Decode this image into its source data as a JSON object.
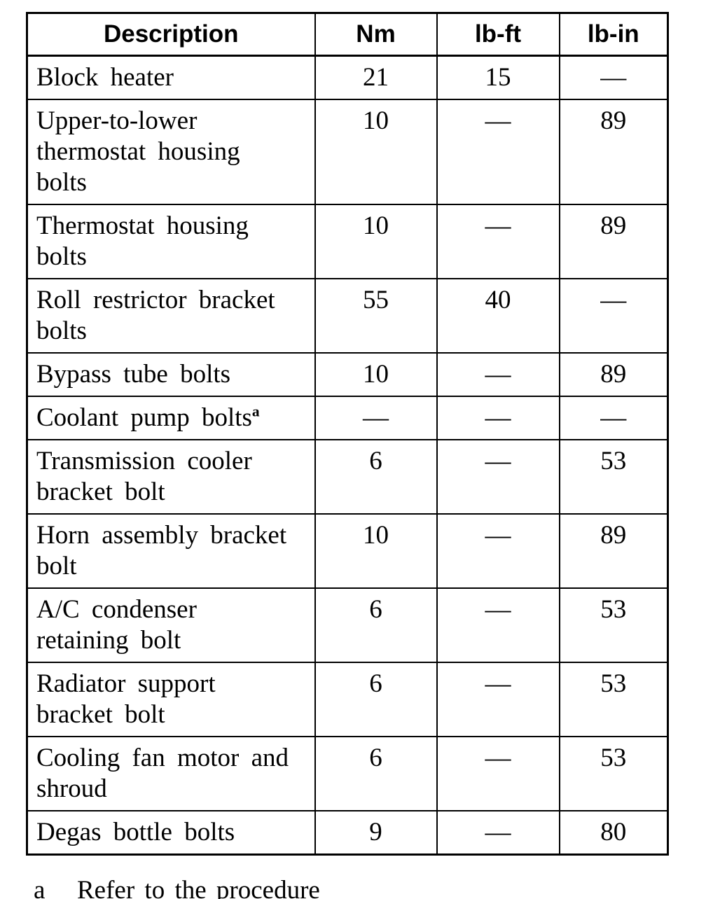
{
  "page": {
    "background_color": "#ffffff",
    "text_color": "#000000",
    "border_color": "#000000"
  },
  "table": {
    "columns": [
      {
        "label": "Description"
      },
      {
        "label": "Nm"
      },
      {
        "label": "lb-ft"
      },
      {
        "label": "lb-in"
      }
    ],
    "rows": [
      {
        "description_lines": [
          "Block heater"
        ],
        "sup": "",
        "nm": "21",
        "lb_ft": "15",
        "lb_in": "—"
      },
      {
        "description_lines": [
          "Upper-to-lower",
          "thermostat housing",
          "bolts"
        ],
        "sup": "",
        "nm": "10",
        "lb_ft": "—",
        "lb_in": "89"
      },
      {
        "description_lines": [
          "Thermostat housing",
          "bolts"
        ],
        "sup": "",
        "nm": "10",
        "lb_ft": "—",
        "lb_in": "89"
      },
      {
        "description_lines": [
          "Roll restrictor bracket",
          "bolts"
        ],
        "sup": "",
        "nm": "55",
        "lb_ft": "40",
        "lb_in": "—"
      },
      {
        "description_lines": [
          "Bypass tube bolts"
        ],
        "sup": "",
        "nm": "10",
        "lb_ft": "—",
        "lb_in": "89"
      },
      {
        "description_lines": [
          "Coolant pump bolts"
        ],
        "sup": "a",
        "nm": "—",
        "lb_ft": "—",
        "lb_in": "—"
      },
      {
        "description_lines": [
          "Transmission cooler",
          "bracket bolt"
        ],
        "sup": "",
        "nm": "6",
        "lb_ft": "—",
        "lb_in": "53"
      },
      {
        "description_lines": [
          "Horn assembly bracket",
          "bolt"
        ],
        "sup": "",
        "nm": "10",
        "lb_ft": "—",
        "lb_in": "89"
      },
      {
        "description_lines": [
          "A/C condenser",
          "retaining bolt"
        ],
        "sup": "",
        "nm": "6",
        "lb_ft": "—",
        "lb_in": "53"
      },
      {
        "description_lines": [
          "Radiator support",
          "bracket bolt"
        ],
        "sup": "",
        "nm": "6",
        "lb_ft": "—",
        "lb_in": "53"
      },
      {
        "description_lines": [
          "Cooling fan motor and",
          "shroud"
        ],
        "sup": "",
        "nm": "6",
        "lb_ft": "—",
        "lb_in": "53"
      },
      {
        "description_lines": [
          "Degas bottle bolts"
        ],
        "sup": "",
        "nm": "9",
        "lb_ft": "—",
        "lb_in": "80"
      }
    ]
  },
  "footnote": {
    "marker": "a",
    "text": "Refer to the procedure"
  }
}
